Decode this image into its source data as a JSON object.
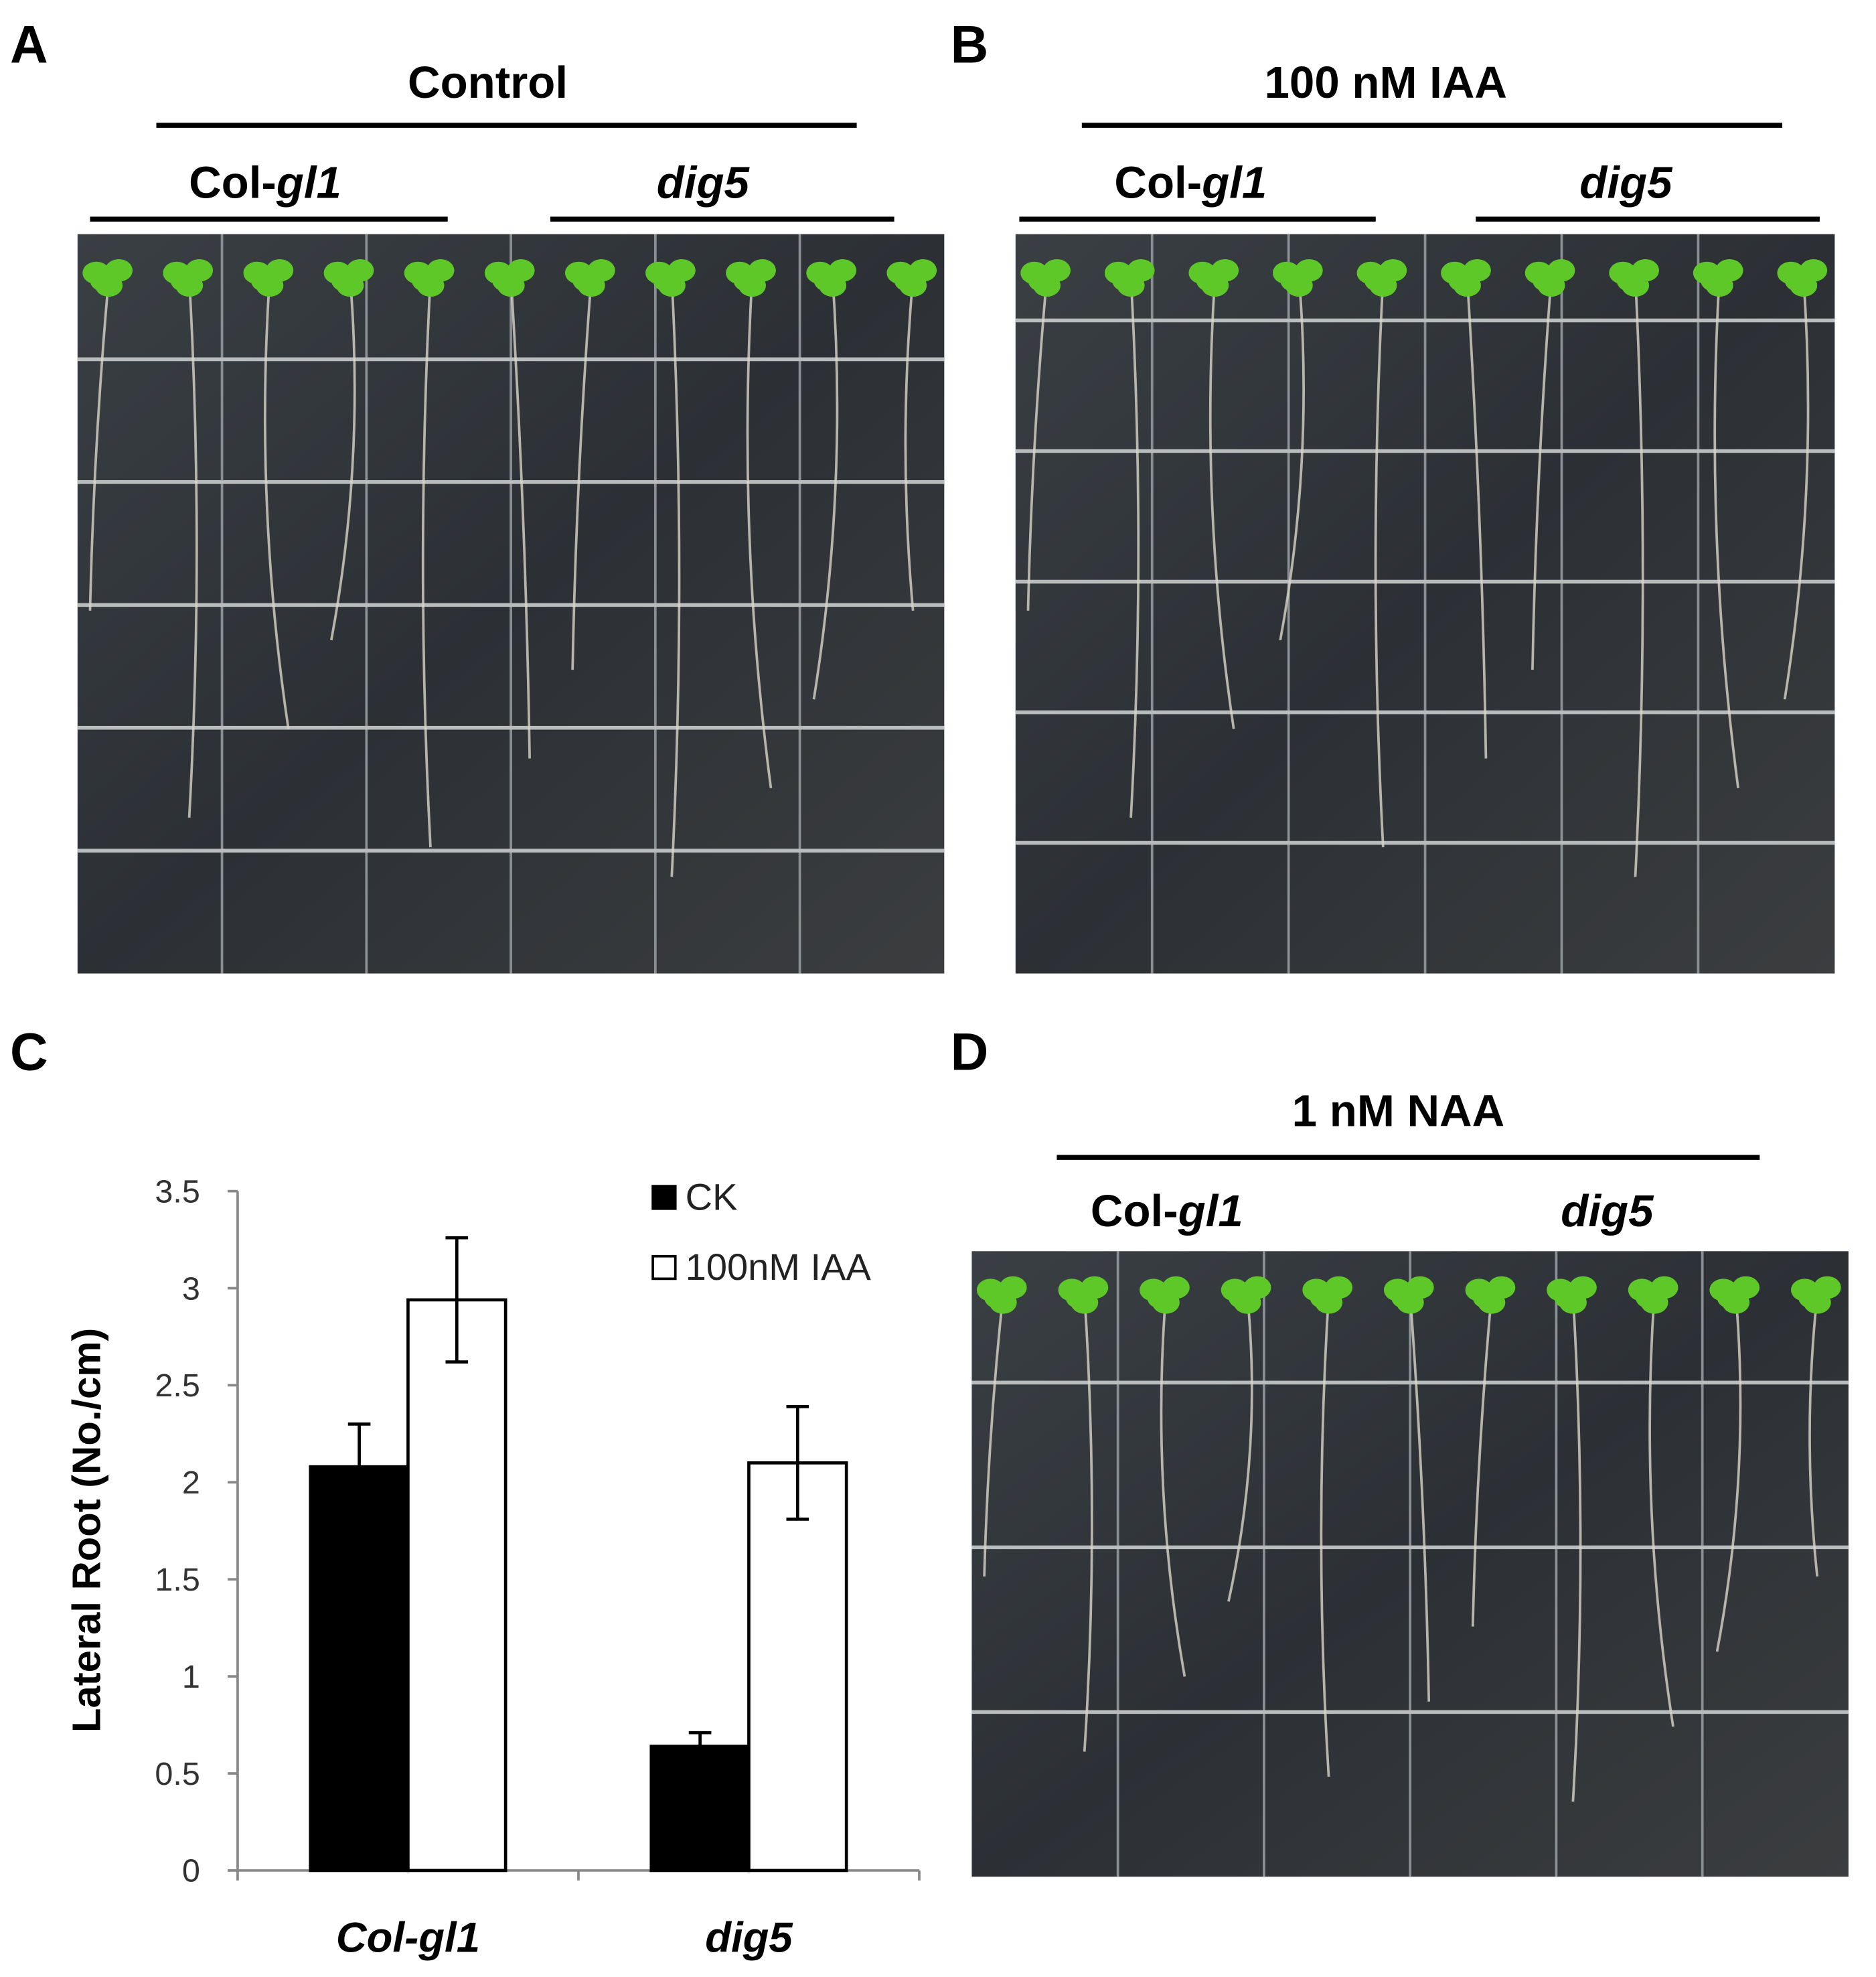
{
  "photo_panels": [
    {
      "label": "A",
      "title": "Control",
      "groups": [
        {
          "prefix": "Col-",
          "italic": "gl1"
        },
        {
          "italic": "dig5"
        }
      ]
    },
    {
      "label": "B",
      "title": "100 nM IAA",
      "groups": [
        {
          "prefix": "Col-",
          "italic": "gl1"
        },
        {
          "italic": "dig5"
        }
      ]
    },
    {
      "label": "D",
      "title": "1 nM NAA",
      "groups": [
        {
          "prefix": "Col-",
          "italic": "gl1"
        },
        {
          "italic": "dig5"
        }
      ]
    }
  ],
  "chart_data": {
    "panel_label": "C",
    "type": "bar",
    "y_label": "Lateral Root (No./cm)",
    "categories": [
      "Col-gl1",
      "dig5"
    ],
    "series": [
      {
        "name": "CK",
        "color": "#000000",
        "values": [
          2.08,
          0.64
        ],
        "errors": [
          0.22,
          0.07
        ]
      },
      {
        "name": "100nM IAA",
        "color": "#ffffff",
        "values": [
          2.94,
          2.1
        ],
        "errors": [
          0.32,
          0.29
        ]
      }
    ],
    "ylim": [
      0,
      3.5
    ],
    "yticks": [
      0,
      0.5,
      1,
      1.5,
      2,
      2.5,
      3,
      3.5
    ],
    "grid": false,
    "legend": "top-right"
  }
}
